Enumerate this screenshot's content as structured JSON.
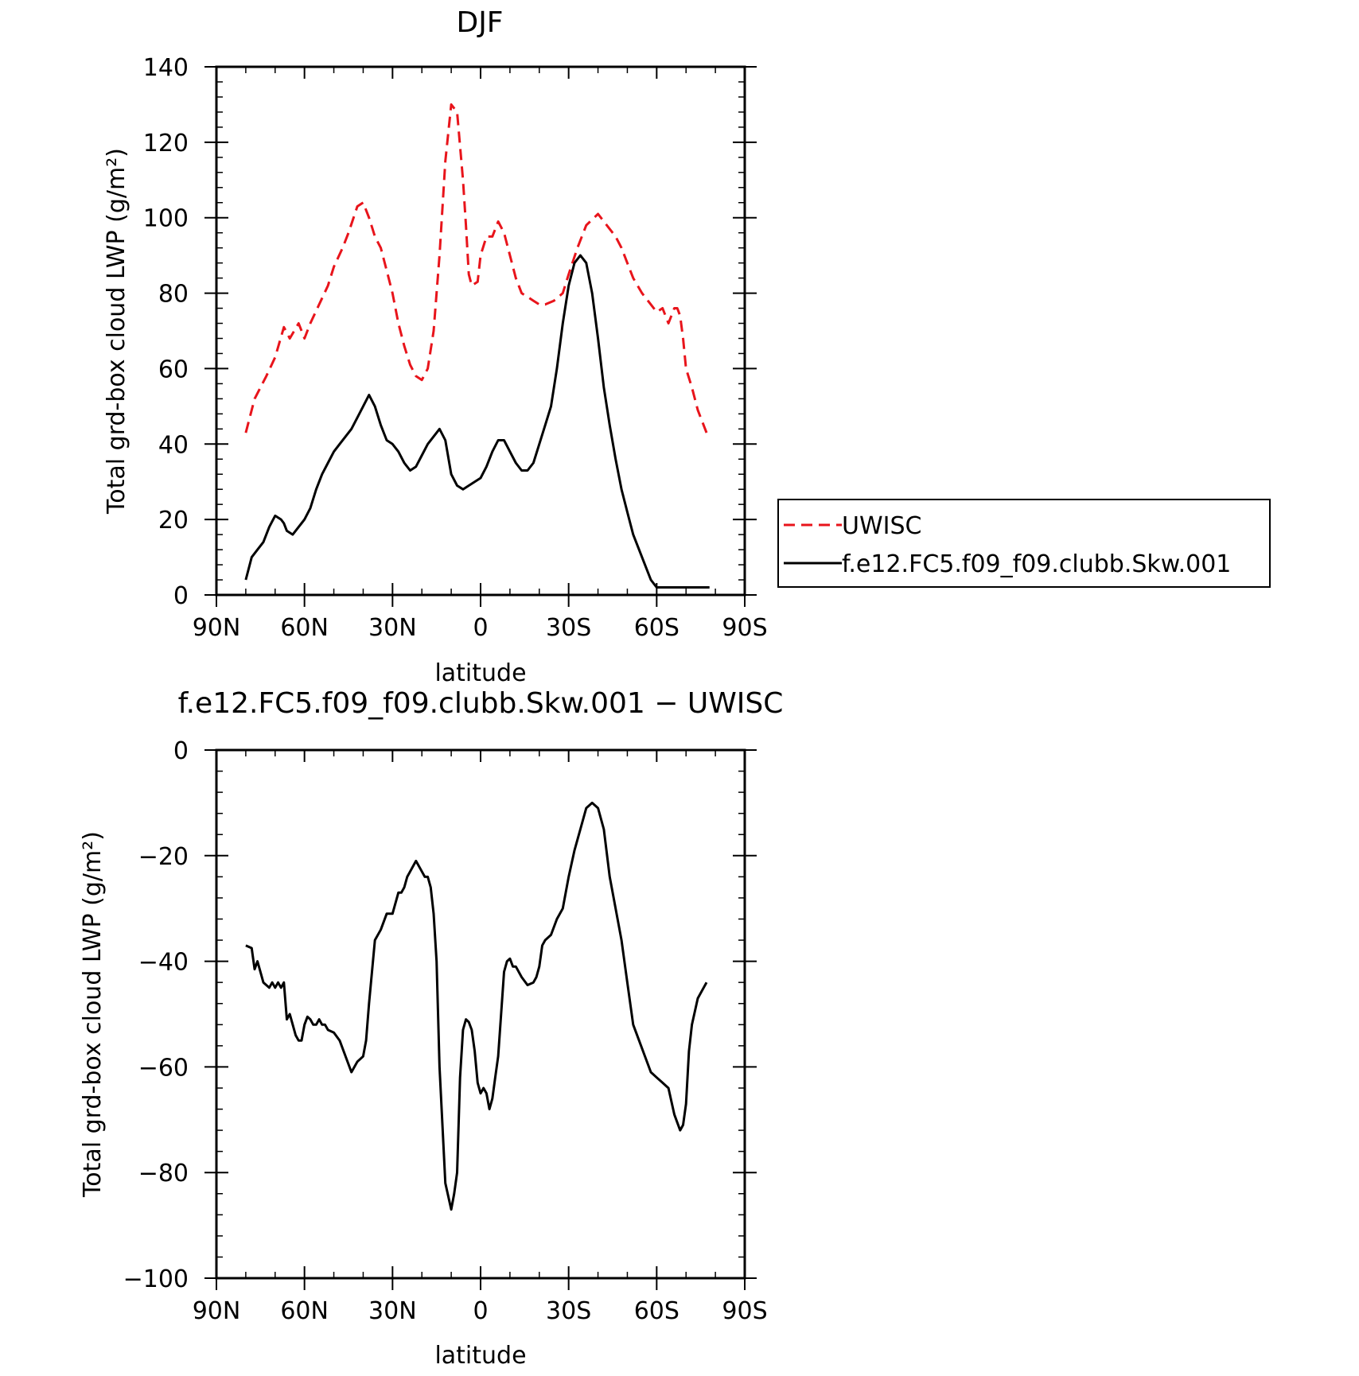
{
  "chart_data": [
    {
      "type": "line",
      "title": "DJF",
      "xlabel": "latitude",
      "ylabel": "Total grd-box cloud LWP (g/m²)",
      "xlim": [
        90,
        -90
      ],
      "ylim": [
        0,
        140
      ],
      "xticks": [
        90,
        60,
        30,
        0,
        -30,
        -60,
        -90
      ],
      "xtick_labels": [
        "90N",
        "60N",
        "30N",
        "0",
        "30S",
        "60S",
        "90S"
      ],
      "yticks": [
        0,
        20,
        40,
        60,
        80,
        100,
        120,
        140
      ],
      "ytick_labels": [
        "0",
        "20",
        "40",
        "60",
        "80",
        "100",
        "120",
        "140"
      ],
      "legend_position": "right",
      "series": [
        {
          "name": "UWISC",
          "color": "#e8141b",
          "dash": "dashed",
          "x": [
            80,
            77,
            73,
            70,
            67,
            65,
            62,
            60,
            58,
            55,
            52,
            50,
            47,
            45,
            42,
            40,
            38,
            36,
            34,
            32,
            30,
            28,
            26,
            24,
            22,
            20,
            18,
            16,
            14,
            12,
            10,
            8,
            6,
            5,
            4,
            3,
            1,
            0,
            -2,
            -4,
            -6,
            -8,
            -10,
            -12,
            -14,
            -16,
            -18,
            -20,
            -22,
            -25,
            -28,
            -30,
            -33,
            -36,
            -40,
            -43,
            -46,
            -48,
            -50,
            -52,
            -55,
            -58,
            -60,
            -62,
            -64,
            -66,
            -67,
            -68,
            -69,
            -70,
            -72,
            -74,
            -77
          ],
          "values": [
            43,
            52,
            58,
            63,
            71,
            68,
            72,
            68,
            72,
            77,
            82,
            87,
            92,
            96,
            103,
            104,
            100,
            95,
            92,
            86,
            80,
            72,
            66,
            61,
            58,
            57,
            60,
            70,
            90,
            115,
            130,
            128,
            110,
            98,
            85,
            82,
            83,
            90,
            95,
            95,
            99,
            96,
            90,
            84,
            80,
            79,
            78,
            77,
            77,
            78,
            80,
            85,
            92,
            98,
            101,
            98,
            95,
            92,
            88,
            84,
            80,
            77,
            75,
            76,
            72,
            76,
            76,
            74,
            68,
            60,
            55,
            49,
            43
          ]
        },
        {
          "name": "f.e12.FC5.f09_f09.clubb.Skw.001",
          "color": "#000000",
          "dash": "solid",
          "x": [
            80,
            78,
            76,
            74,
            72,
            70,
            68,
            67,
            66,
            64,
            62,
            60,
            58,
            56,
            54,
            52,
            50,
            48,
            46,
            44,
            42,
            40,
            38,
            36,
            34,
            32,
            30,
            28,
            26,
            24,
            22,
            20,
            18,
            16,
            14,
            12,
            10,
            8,
            6,
            4,
            2,
            0,
            -2,
            -4,
            -6,
            -8,
            -10,
            -12,
            -14,
            -16,
            -18,
            -20,
            -22,
            -24,
            -26,
            -28,
            -30,
            -32,
            -34,
            -36,
            -38,
            -40,
            -42,
            -44,
            -46,
            -48,
            -50,
            -52,
            -54,
            -56,
            -58,
            -60,
            -62,
            -64,
            -66,
            -68,
            -70,
            -72,
            -74,
            -76,
            -78
          ],
          "values": [
            4,
            10,
            12,
            14,
            18,
            21,
            20,
            19,
            17,
            16,
            18,
            20,
            23,
            28,
            32,
            35,
            38,
            40,
            42,
            44,
            47,
            50,
            53,
            50,
            45,
            41,
            40,
            38,
            35,
            33,
            34,
            37,
            40,
            42,
            44,
            41,
            32,
            29,
            28,
            29,
            30,
            31,
            34,
            38,
            41,
            41,
            38,
            35,
            33,
            33,
            35,
            40,
            45,
            50,
            60,
            72,
            82,
            88,
            90,
            88,
            80,
            68,
            55,
            45,
            36,
            28,
            22,
            16,
            12,
            8,
            4,
            2,
            2,
            2,
            2,
            2,
            2,
            2,
            2,
            2,
            2
          ]
        }
      ]
    },
    {
      "type": "line",
      "title": "f.e12.FC5.f09_f09.clubb.Skw.001 − UWISC",
      "xlabel": "latitude",
      "ylabel": "Total grd-box cloud LWP (g/m²)",
      "xlim": [
        90,
        -90
      ],
      "ylim": [
        -100,
        0
      ],
      "xticks": [
        90,
        60,
        30,
        0,
        -30,
        -60,
        -90
      ],
      "xtick_labels": [
        "90N",
        "60N",
        "30N",
        "0",
        "30S",
        "60S",
        "90S"
      ],
      "yticks": [
        -100,
        -80,
        -60,
        -40,
        -20,
        0
      ],
      "ytick_labels": [
        "−100",
        "−80",
        "−60",
        "−40",
        "−20",
        "0"
      ],
      "series": [
        {
          "color": "#000000",
          "dash": "solid",
          "x": [
            80,
            78,
            77,
            76,
            74,
            72,
            71,
            70,
            69,
            68,
            67,
            66,
            65,
            64,
            63,
            62,
            61,
            60,
            59,
            58,
            57,
            56,
            55,
            54,
            53,
            52,
            50,
            48,
            46,
            44,
            42,
            40,
            39,
            38,
            37,
            36,
            34,
            32,
            30,
            28,
            27,
            26,
            25,
            24,
            22,
            20,
            19,
            18,
            17,
            16,
            15,
            14,
            12,
            10,
            9,
            8,
            7,
            6,
            5,
            4,
            3,
            2,
            1,
            0,
            -1,
            -2,
            -3,
            -4,
            -5,
            -6,
            -7,
            -8,
            -9,
            -10,
            -11,
            -12,
            -14,
            -16,
            -18,
            -19,
            -20,
            -21,
            -22,
            -24,
            -26,
            -28,
            -30,
            -32,
            -34,
            -36,
            -38,
            -40,
            -42,
            -44,
            -46,
            -48,
            -50,
            -52,
            -54,
            -56,
            -58,
            -60,
            -62,
            -64,
            -66,
            -68,
            -69,
            -70,
            -71,
            -72,
            -74,
            -77
          ],
          "values": [
            -37,
            -37.5,
            -41.5,
            -40,
            -44,
            -45,
            -44,
            -45,
            -44,
            -45,
            -44,
            -51,
            -50,
            -52,
            -54,
            -55,
            -55,
            -52,
            -50.5,
            -51,
            -52,
            -52,
            -51,
            -52,
            -52,
            -53,
            -53.5,
            -55,
            -58,
            -61,
            -59,
            -58,
            -55,
            -48,
            -42,
            -36,
            -34,
            -31,
            -31,
            -27,
            -27,
            -26,
            -24,
            -23,
            -21,
            -23,
            -24,
            -24,
            -26,
            -31,
            -40,
            -60,
            -82,
            -87,
            -84,
            -80,
            -62,
            -53,
            -51,
            -51.5,
            -53,
            -57,
            -63,
            -65,
            -64,
            -65,
            -68,
            -66,
            -62,
            -58,
            -50,
            -42,
            -40,
            -39.5,
            -41,
            -41,
            -43,
            -44.5,
            -44,
            -43,
            -41,
            -37,
            -36,
            -35,
            -32,
            -30,
            -24,
            -19,
            -15,
            -11,
            -10,
            -11,
            -15,
            -24,
            -30,
            -36,
            -44,
            -52,
            -55,
            -58,
            -61,
            -62,
            -63,
            -64,
            -69,
            -72,
            -71,
            -67,
            -57,
            -52,
            -47,
            -44
          ]
        }
      ]
    }
  ]
}
